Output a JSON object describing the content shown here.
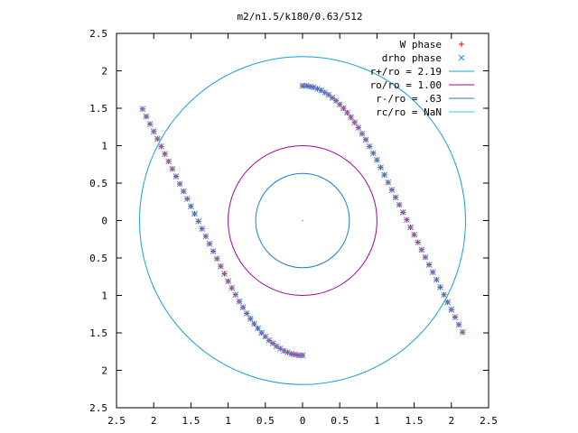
{
  "chart_data": {
    "type": "scatter",
    "title": "m2/n1.5/k180/0.63/512",
    "xlim": [
      -2.5,
      2.5
    ],
    "ylim": [
      -2.5,
      2.5
    ],
    "xticks": [
      -2.5,
      -2,
      -1.5,
      -1,
      -0.5,
      0,
      0.5,
      1,
      1.5,
      2,
      2.5
    ],
    "yticks": [
      -2.5,
      -2,
      -1.5,
      -1,
      -0.5,
      0,
      0.5,
      1,
      1.5,
      2,
      2.5
    ],
    "xtick_labels": [
      "2.5",
      "2",
      "1.5",
      "1",
      "0.5",
      "0",
      "0.5",
      "1",
      "1.5",
      "2",
      "2.5"
    ],
    "ytick_labels": [
      "2.5",
      "2",
      "1.5",
      "1",
      "0.5",
      "0",
      "0.5",
      "1",
      "1.5",
      "2",
      "2.5"
    ],
    "legend_position": "top-right",
    "series": [
      {
        "name": "W phase",
        "kind": "points",
        "marker": "plus",
        "color": "#ff0000",
        "x": [
          0.0,
          0.05,
          0.1,
          0.15,
          0.2,
          0.25,
          0.3,
          0.35,
          0.4,
          0.45,
          0.5,
          0.55,
          0.6,
          0.65,
          0.7,
          0.75,
          0.8,
          0.85,
          0.9,
          0.95,
          1.0,
          1.05,
          1.1,
          1.15,
          1.2,
          1.25,
          1.3,
          1.35,
          1.4,
          1.45,
          1.5,
          1.55,
          1.6,
          1.65,
          1.7,
          1.75,
          1.8,
          1.85,
          1.9,
          1.95,
          2.0,
          2.05,
          2.1,
          2.15,
          0.0,
          -0.05,
          -0.1,
          -0.15,
          -0.2,
          -0.25,
          -0.3,
          -0.35,
          -0.4,
          -0.45,
          -0.5,
          -0.55,
          -0.6,
          -0.65,
          -0.7,
          -0.75,
          -0.8,
          -0.85,
          -0.9,
          -0.95,
          -1.0,
          -1.05,
          -1.1,
          -1.15,
          -1.2,
          -1.25,
          -1.3,
          -1.35,
          -1.4,
          -1.45,
          -1.5,
          -1.55,
          -1.6,
          -1.65,
          -1.7,
          -1.75,
          -1.8,
          -1.85,
          -1.9,
          -1.95,
          -2.0,
          -2.05,
          -2.1,
          -2.15
        ],
        "y": [
          1.8,
          1.8,
          1.79,
          1.78,
          1.76,
          1.74,
          1.71,
          1.68,
          1.64,
          1.6,
          1.55,
          1.5,
          1.44,
          1.38,
          1.31,
          1.24,
          1.16,
          1.08,
          0.99,
          0.9,
          0.81,
          0.71,
          0.61,
          0.51,
          0.41,
          0.31,
          0.21,
          0.11,
          0.01,
          -0.09,
          -0.19,
          -0.29,
          -0.39,
          -0.49,
          -0.59,
          -0.69,
          -0.79,
          -0.89,
          -0.99,
          -1.09,
          -1.19,
          -1.29,
          -1.39,
          -1.49,
          -1.8,
          -1.8,
          -1.79,
          -1.78,
          -1.76,
          -1.74,
          -1.71,
          -1.68,
          -1.64,
          -1.6,
          -1.55,
          -1.5,
          -1.44,
          -1.38,
          -1.31,
          -1.24,
          -1.16,
          -1.08,
          -0.99,
          -0.9,
          -0.81,
          -0.71,
          -0.61,
          -0.51,
          -0.41,
          -0.31,
          -0.21,
          -0.11,
          -0.01,
          0.09,
          0.19,
          0.29,
          0.39,
          0.49,
          0.59,
          0.69,
          0.79,
          0.89,
          0.99,
          1.09,
          1.19,
          1.29,
          1.39,
          1.49
        ]
      },
      {
        "name": "drho phase",
        "kind": "points",
        "marker": "x",
        "color": "#1e90ff",
        "x": [
          0.0,
          0.05,
          0.1,
          0.15,
          0.2,
          0.25,
          0.3,
          0.35,
          0.4,
          0.45,
          0.5,
          0.55,
          0.6,
          0.65,
          0.7,
          0.75,
          0.8,
          0.85,
          0.9,
          0.95,
          1.0,
          1.05,
          1.1,
          1.15,
          1.2,
          1.25,
          1.3,
          1.35,
          1.4,
          1.45,
          1.5,
          1.55,
          1.6,
          1.65,
          1.7,
          1.75,
          1.8,
          1.85,
          1.9,
          1.95,
          2.0,
          2.05,
          2.1,
          2.15,
          0.0,
          -0.05,
          -0.1,
          -0.15,
          -0.2,
          -0.25,
          -0.3,
          -0.35,
          -0.4,
          -0.45,
          -0.5,
          -0.55,
          -0.6,
          -0.65,
          -0.7,
          -0.75,
          -0.8,
          -0.85,
          -0.9,
          -0.95,
          -1.0,
          -1.05,
          -1.1,
          -1.15,
          -1.2,
          -1.25,
          -1.3,
          -1.35,
          -1.4,
          -1.45,
          -1.5,
          -1.55,
          -1.6,
          -1.65,
          -1.7,
          -1.75,
          -1.8,
          -1.85,
          -1.9,
          -1.95,
          -2.0,
          -2.05,
          -2.1,
          -2.15
        ],
        "y": [
          1.8,
          1.8,
          1.79,
          1.78,
          1.76,
          1.74,
          1.71,
          1.68,
          1.64,
          1.6,
          1.55,
          1.5,
          1.44,
          1.38,
          1.31,
          1.24,
          1.16,
          1.08,
          0.99,
          0.9,
          0.81,
          0.71,
          0.61,
          0.51,
          0.41,
          0.31,
          0.21,
          0.11,
          0.01,
          -0.09,
          -0.19,
          -0.29,
          -0.39,
          -0.49,
          -0.59,
          -0.69,
          -0.79,
          -0.89,
          -0.99,
          -1.09,
          -1.19,
          -1.29,
          -1.39,
          -1.49,
          -1.8,
          -1.8,
          -1.79,
          -1.78,
          -1.76,
          -1.74,
          -1.71,
          -1.68,
          -1.64,
          -1.6,
          -1.55,
          -1.5,
          -1.44,
          -1.38,
          -1.31,
          -1.24,
          -1.16,
          -1.08,
          -0.99,
          -0.9,
          -0.81,
          -0.71,
          -0.61,
          -0.51,
          -0.41,
          -0.31,
          -0.21,
          -0.11,
          -0.01,
          0.09,
          0.19,
          0.29,
          0.39,
          0.49,
          0.59,
          0.69,
          0.79,
          0.89,
          0.99,
          1.09,
          1.19,
          1.29,
          1.39,
          1.49
        ]
      },
      {
        "name": "r+/ro = 2.19",
        "kind": "circle",
        "radius": 2.19,
        "color": "#1a9ed8"
      },
      {
        "name": "ro/ro = 1.00",
        "kind": "circle",
        "radius": 1.0,
        "color": "#a000a0"
      },
      {
        "name": "r-/ro = .63",
        "kind": "circle",
        "radius": 0.63,
        "color": "#1a7fd0"
      },
      {
        "name": "rc/ro = NaN",
        "kind": "circle",
        "radius": null,
        "color": "#2fd7d7"
      }
    ]
  }
}
